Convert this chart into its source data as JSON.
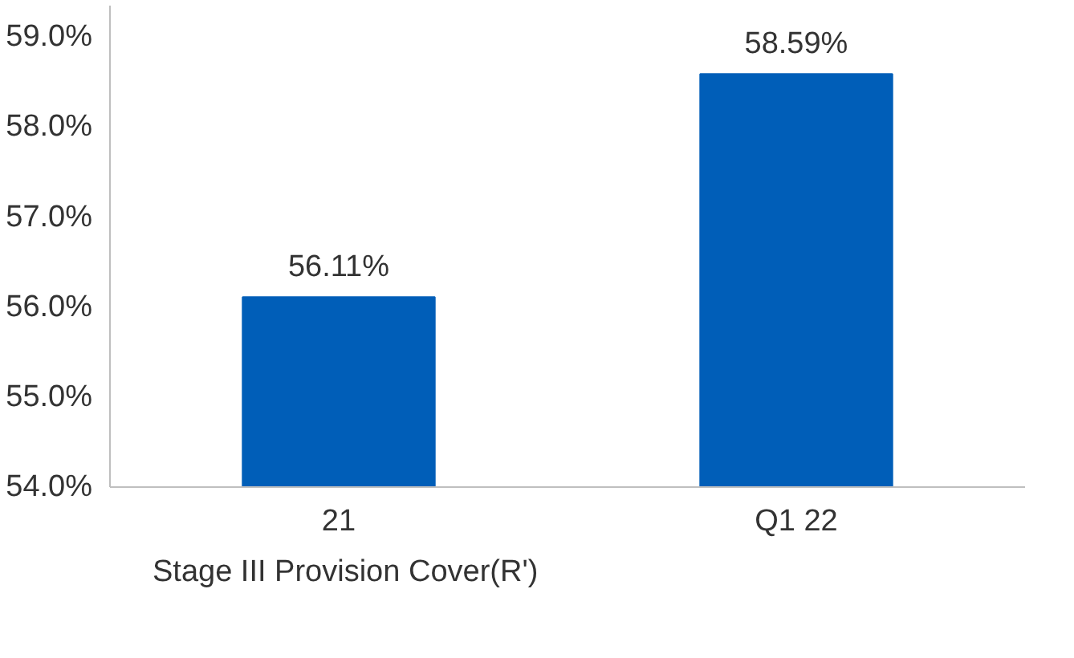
{
  "chart_data": {
    "type": "bar",
    "categories": [
      "21",
      "Q1 22"
    ],
    "series": [
      {
        "name": "Stage III Provision Cover(R')",
        "color": "#005eb8",
        "values": [
          56.11,
          58.59
        ],
        "value_labels": [
          "56.11%",
          "58.59%"
        ]
      }
    ],
    "ylim": [
      54.0,
      59.35
    ],
    "yticks": [
      {
        "value": 54,
        "label": "54.0%"
      },
      {
        "value": 55,
        "label": "55.0%"
      },
      {
        "value": 56,
        "label": "56.0%"
      },
      {
        "value": 57,
        "label": "57.0%"
      },
      {
        "value": 58,
        "label": "58.0%"
      },
      {
        "value": 59,
        "label": "59.0%"
      }
    ],
    "grid": false,
    "legend": "bottom left"
  }
}
